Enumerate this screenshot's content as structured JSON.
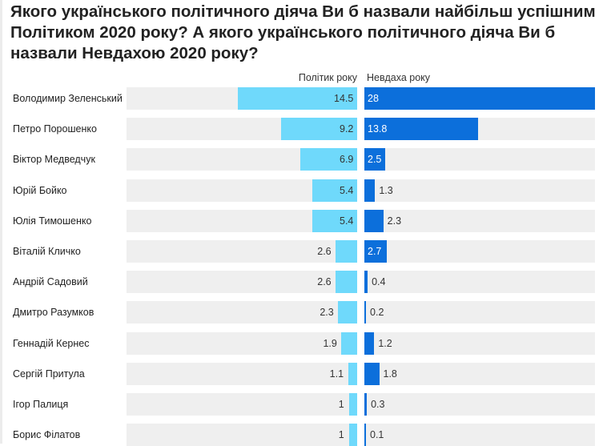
{
  "chart_data": {
    "type": "bar",
    "title": "Якого українського політичного діяча Ви б назвали найбільш успішним Політиком 2020 року? А якого українського політичного діяча Ви б назвали Невдахою 2020 року?",
    "categories": [
      "Володимир Зеленський",
      "Петро Порошенко",
      "Віктор Медведчук",
      "Юрій Бойко",
      "Юлія Тимошенко",
      "Віталій Кличко",
      "Андрій Садовий",
      "Дмитро Разумков",
      "Геннадій Кернес",
      "Сергій Притула",
      "Ігор Палиця",
      "Борис Філатов"
    ],
    "series": [
      {
        "name": "Політик року",
        "values": [
          14.5,
          9.2,
          6.9,
          5.4,
          5.4,
          2.6,
          2.6,
          2.3,
          1.9,
          1.1,
          1,
          1
        ],
        "color": "#6fd9fb"
      },
      {
        "name": "Невдаха року",
        "values": [
          28,
          13.8,
          2.5,
          1.3,
          2.3,
          2.7,
          0.4,
          0.2,
          1.2,
          1.8,
          0.3,
          0.1
        ],
        "color": "#0c6fdb"
      }
    ],
    "layout": "diverging-two-column",
    "grid": false
  }
}
